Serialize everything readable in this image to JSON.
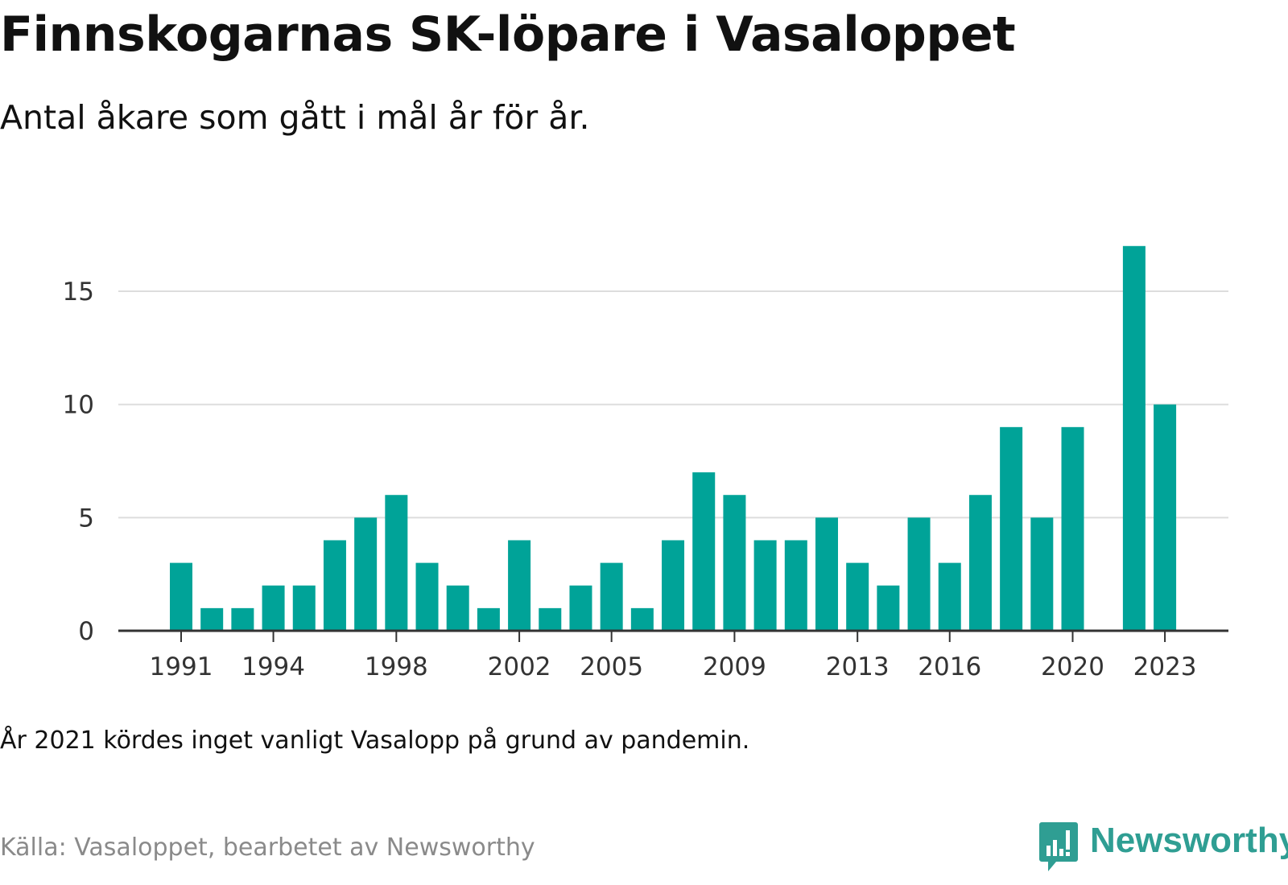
{
  "title": "Finnskogarnas SK-löpare i Vasaloppet",
  "subtitle": "Antal åkare som gått i mål år för år.",
  "note": "År 2021 kördes inget vanligt Vasalopp på grund av pandemin.",
  "source": "Källa: Vasaloppet, bearbetet av Newsworthy",
  "brand": {
    "name": "Newsworthy",
    "logo_icon": "newsworthy-chat-bar-icon",
    "color": "#2f9e93"
  },
  "colors": {
    "bar": "#00a398",
    "grid": "#dddddd",
    "axis": "#333333"
  },
  "chart_data": {
    "type": "bar",
    "categories": [
      1991,
      1992,
      1993,
      1994,
      1995,
      1996,
      1997,
      1998,
      1999,
      2000,
      2001,
      2002,
      2003,
      2004,
      2005,
      2006,
      2007,
      2008,
      2009,
      2010,
      2011,
      2012,
      2013,
      2014,
      2015,
      2016,
      2017,
      2018,
      2019,
      2020,
      2021,
      2022,
      2023
    ],
    "values": [
      3,
      1,
      1,
      2,
      2,
      4,
      5,
      6,
      3,
      2,
      1,
      4,
      1,
      2,
      3,
      1,
      4,
      7,
      6,
      4,
      4,
      5,
      3,
      2,
      5,
      3,
      6,
      9,
      5,
      9,
      null,
      17,
      10
    ],
    "x_tick_labels": [
      "1991",
      "1994",
      "1998",
      "2002",
      "2005",
      "2009",
      "2013",
      "2016",
      "2020",
      "2023"
    ],
    "y_ticks": [
      0,
      5,
      10,
      15
    ],
    "ylim": [
      0,
      17
    ],
    "grid": true
  }
}
